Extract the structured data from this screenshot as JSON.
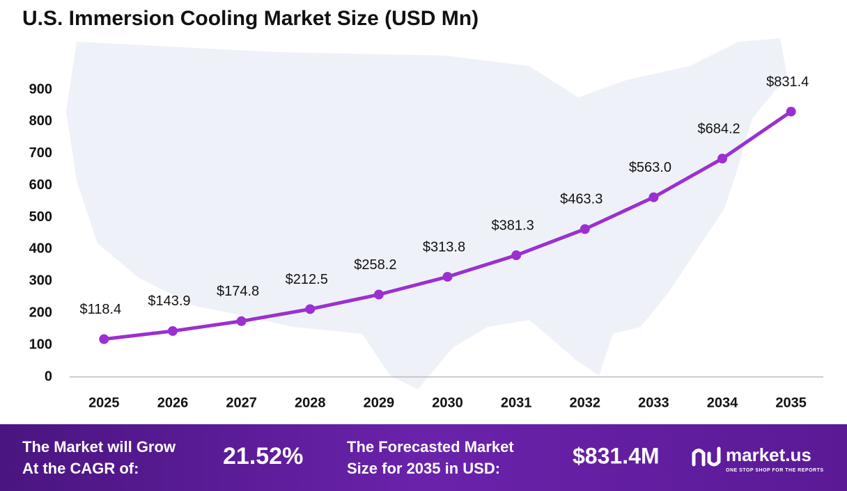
{
  "chart_data": {
    "type": "line",
    "title": "U.S. Immersion Cooling Market Size (USD Mn)",
    "categories": [
      "2025",
      "2026",
      "2027",
      "2028",
      "2029",
      "2030",
      "2031",
      "2032",
      "2033",
      "2034",
      "2035"
    ],
    "series": [
      {
        "name": "Market Size",
        "color": "#9b30d0",
        "values": [
          118.4,
          143.9,
          174.8,
          212.5,
          258.2,
          313.8,
          381.3,
          463.3,
          563.0,
          684.2,
          831.4
        ],
        "value_labels": [
          "$118.4",
          "$143.9",
          "$174.8",
          "$212.5",
          "$258.2",
          "$313.8",
          "$381.3",
          "$463.3",
          "$563.0",
          "$684.2",
          "$831.4"
        ]
      }
    ],
    "ylim": [
      0,
      900
    ],
    "yticks": [
      0,
      100,
      200,
      300,
      400,
      500,
      600,
      700,
      800,
      900
    ],
    "grid": false
  },
  "footer": {
    "cagr_label": [
      "The Market will Grow",
      "At the CAGR of:"
    ],
    "cagr_value": "21.52%",
    "forecast_label": [
      "The Forecasted Market",
      "Size for 2035 in USD:"
    ],
    "forecast_value": "$831.4M",
    "brand": "market.us",
    "tagline": "ONE STOP SHOP FOR THE REPORTS"
  }
}
